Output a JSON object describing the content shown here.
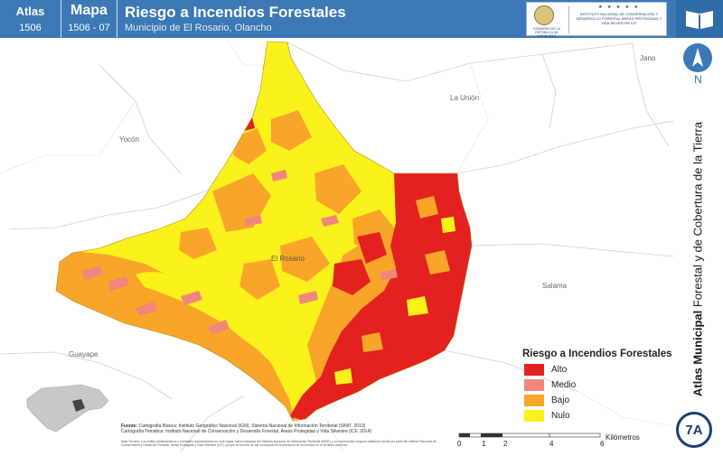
{
  "header": {
    "atlas_label": "Atlas",
    "atlas_number": "1506",
    "mapa_label": "Mapa",
    "mapa_number": "1506 - 07",
    "title": "Riesgo a Incendios Forestales",
    "subtitle": "Municipio de El Rosario, Olancho",
    "logo_government_text": "GOBIERNO DE LA REPÚBLICA DE HONDURAS",
    "logo_institute_stars": "★ ★ ★ ★ ★",
    "logo_institute_text": "INSTITUTO NACIONAL DE CONSERVACIÓN Y DESARROLLO FORESTAL ÁREAS PROTEGIDAS Y VIDA SILVESTRE ICF",
    "book_icon": "open-book-icon"
  },
  "map": {
    "places": {
      "jano": "Jano",
      "la_union": "La Unión",
      "yocon": "Yocón",
      "el_rosario": "El Rosario",
      "salama": "Salama",
      "guayape": "Guayape"
    },
    "colors": {
      "alto": "#e3211f",
      "medio": "#f1877a",
      "bajo": "#f8a52a",
      "nulo": "#fbf11b"
    }
  },
  "right_bar": {
    "north_label": "N",
    "north_icon": "north-arrow-icon",
    "side_title_bold": "Atlas Municipal",
    "side_title_rest": " Forestal y de Cobertura de la Tierra",
    "badge": "7A"
  },
  "legend": {
    "title": "Riesgo a Incendios Forestales",
    "items": [
      {
        "label": "Alto",
        "color": "#e3211f"
      },
      {
        "label": "Medio",
        "color": "#f1877a"
      },
      {
        "label": "Bajo",
        "color": "#f8a52a"
      },
      {
        "label": "Nulo",
        "color": "#fbf11b"
      }
    ]
  },
  "sources": {
    "label": "Fuente:",
    "line1": "Cartografía Básica: Instituto Geográfico Nacional (IGN), Sistema Nacional de Información Territorial (SINIT, 2013)",
    "line2": "Cartografía Temática: Instituto Nacional de Conservación y Desarrollo Forestal, Áreas Protegidas y Vida Silvestre (ICF, 2014)",
    "notes": "Nota Técnica: Los límites administrativos y forestales representados en este mapa, fueron basados del Sistema Nacional de Información Territorial (SINIT) y no representan ninguna validación oficial por parte del Instituto Nacional de Conservación y Desarrollo Forestal, Áreas Protegidas y Vida Silvestre (ICF), ya que es función de los municipios en la ubicación de sus límites en el territorio nacional."
  },
  "scale": {
    "ticks": [
      "0",
      "1",
      "2",
      "4",
      "6"
    ],
    "unit": "Kilómetros"
  }
}
